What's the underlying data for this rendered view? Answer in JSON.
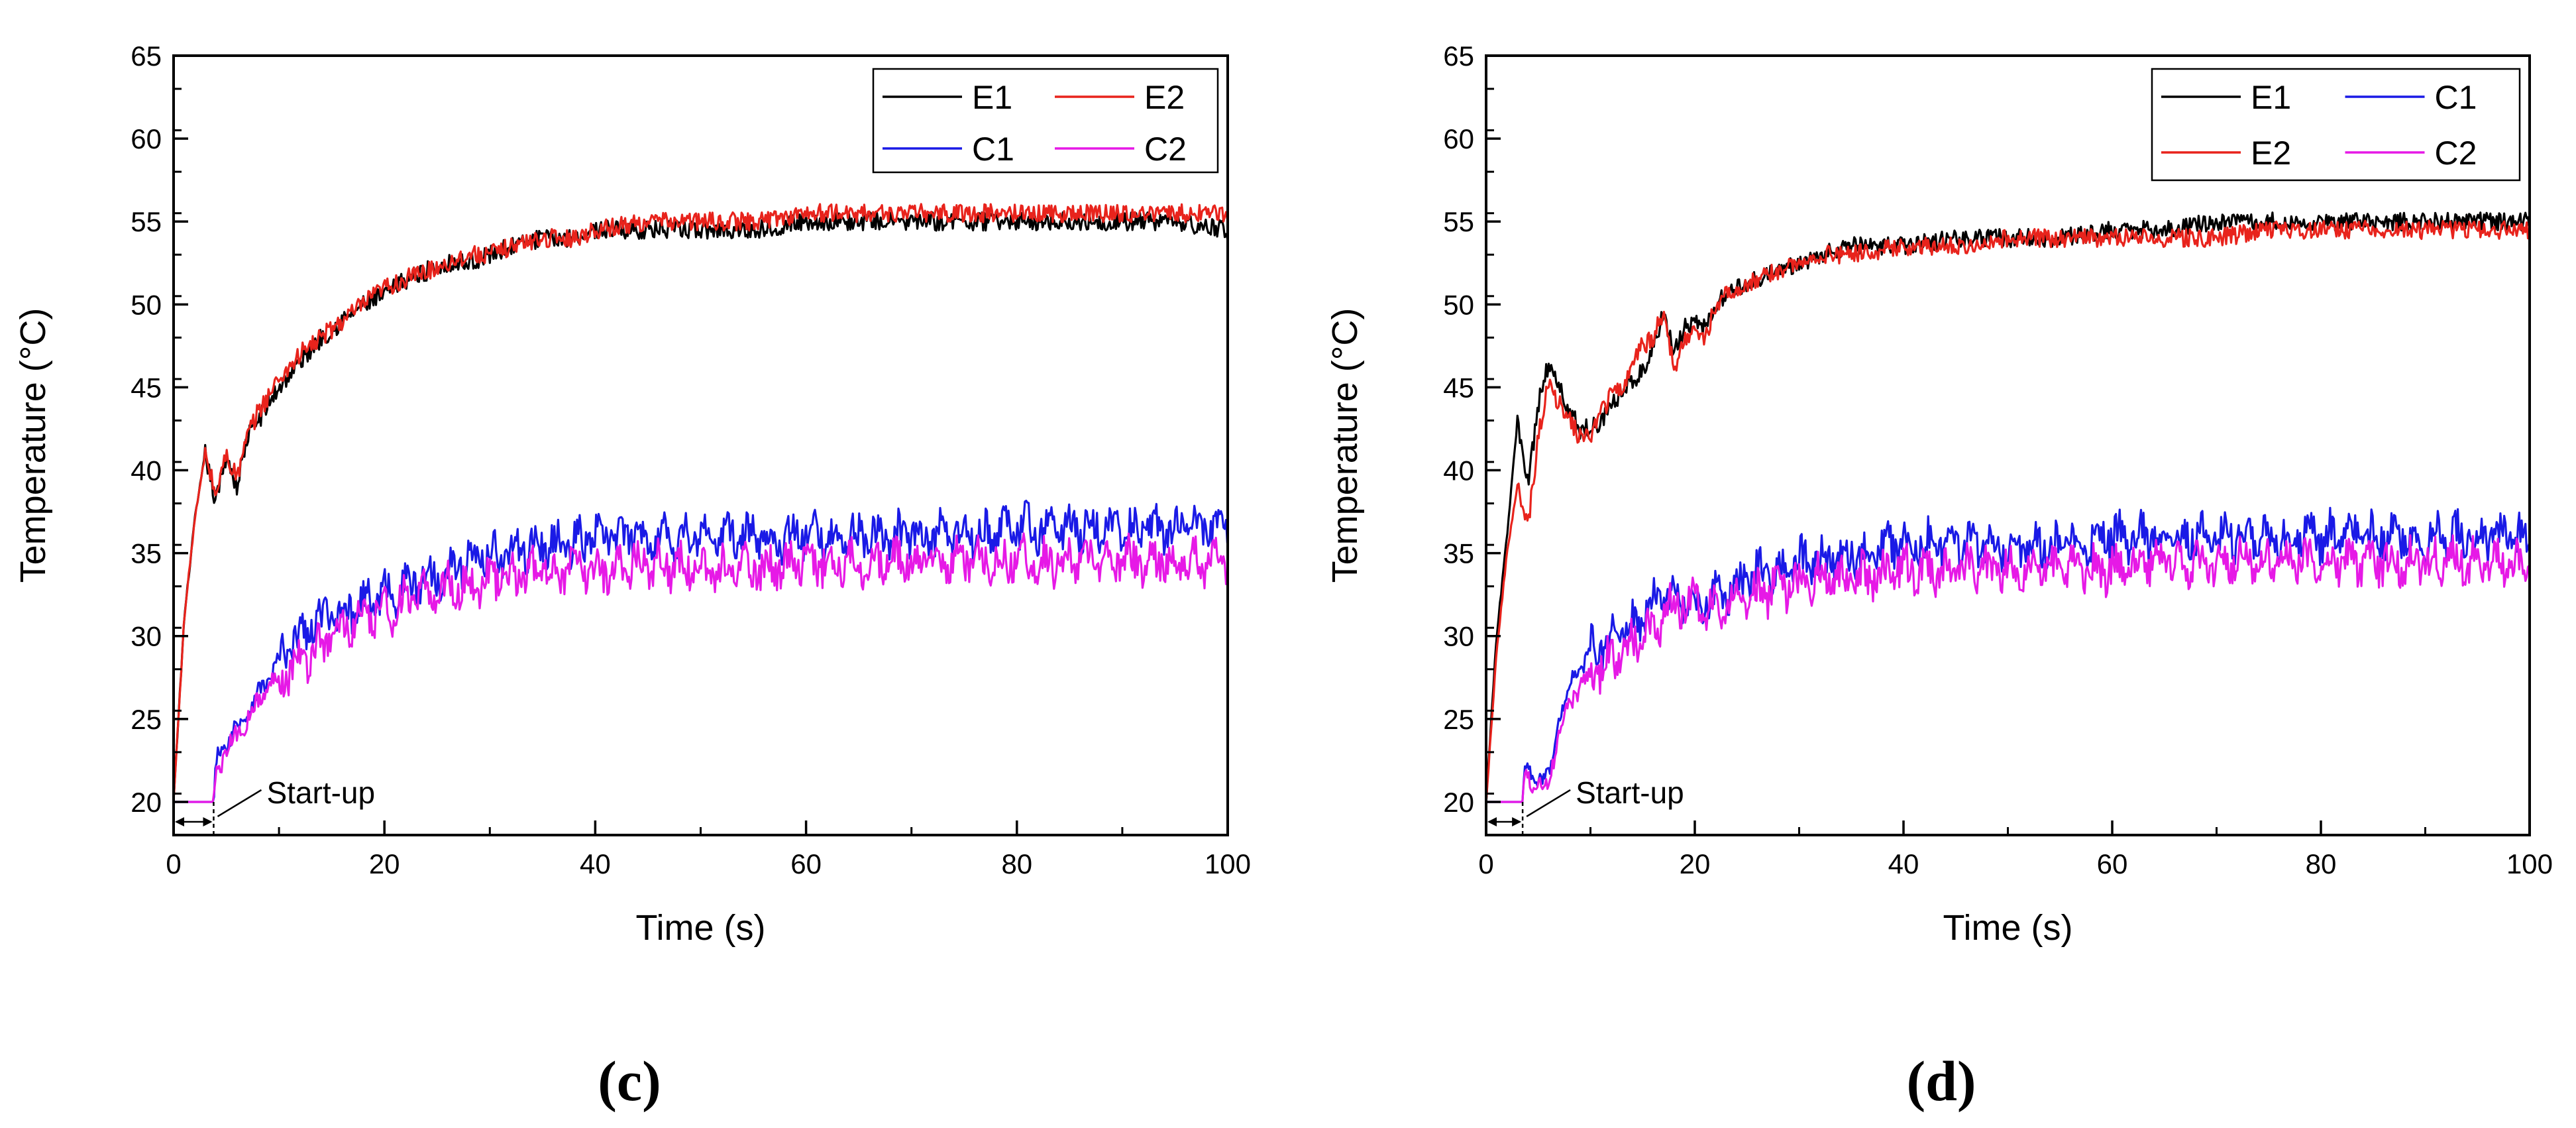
{
  "colors": {
    "E1": "#000000",
    "E2": "#e8231c",
    "C1": "#1a1ae6",
    "C2": "#e619e6"
  },
  "chart_data": [
    {
      "type": "line",
      "panel_label": "c",
      "xlabel": "Time (s)",
      "ylabel": "Temperature (°C)",
      "xlim": [
        0,
        100
      ],
      "ylim": [
        18,
        65
      ],
      "xticks": [
        0,
        20,
        40,
        60,
        80,
        100
      ],
      "yticks": [
        20,
        25,
        30,
        35,
        40,
        45,
        50,
        55,
        60,
        65
      ],
      "legend_order": [
        "E1",
        "E2",
        "C1",
        "C2"
      ],
      "legend_position": "top-right",
      "annotation": {
        "text": "Start-up",
        "x_start": 0,
        "x_end": 3.8,
        "y": 20
      },
      "series": [
        {
          "name": "E1",
          "color_key": "E1",
          "x": [
            0,
            1,
            2,
            3,
            4,
            5,
            6,
            7,
            8,
            9,
            10,
            12,
            14,
            16,
            18,
            20,
            22,
            24,
            26,
            28,
            30,
            32,
            35,
            38,
            40,
            45,
            50,
            55,
            60,
            65,
            70,
            75,
            80,
            85,
            90,
            95,
            100
          ],
          "values": [
            20,
            31,
            37,
            41,
            38,
            41,
            39,
            42,
            43,
            44,
            45,
            46.5,
            48,
            49,
            50,
            50.5,
            51.5,
            52,
            52.5,
            52.5,
            53,
            53.5,
            54,
            54,
            54.5,
            54.5,
            54.5,
            54.5,
            55,
            55,
            55,
            55,
            55,
            55,
            55,
            55,
            54.5
          ]
        },
        {
          "name": "E2",
          "color_key": "E2",
          "x": [
            0,
            1,
            2,
            3,
            4,
            5,
            6,
            7,
            8,
            9,
            10,
            12,
            14,
            16,
            18,
            20,
            22,
            24,
            26,
            28,
            30,
            32,
            35,
            38,
            40,
            45,
            50,
            55,
            60,
            65,
            70,
            75,
            80,
            85,
            90,
            95,
            100
          ],
          "values": [
            20,
            31,
            37,
            41,
            38.5,
            41,
            39.5,
            42,
            43.5,
            44.5,
            45.5,
            47,
            48,
            49,
            50,
            51,
            51.5,
            52,
            52.5,
            53,
            53,
            53.5,
            54,
            54,
            54.5,
            55,
            55,
            55,
            55.5,
            55.5,
            55.5,
            55.5,
            55.5,
            55.5,
            55.5,
            55.5,
            55.5
          ]
        },
        {
          "name": "C1",
          "color_key": "C1",
          "x": [
            0,
            3.8,
            4,
            5,
            6,
            7,
            8,
            9,
            10,
            12,
            14,
            16,
            18,
            20,
            22,
            24,
            26,
            28,
            30,
            32,
            35,
            38,
            40,
            45,
            50,
            55,
            60,
            65,
            70,
            75,
            80,
            85,
            90,
            95,
            100
          ],
          "values": [
            20,
            20,
            22.5,
            23.5,
            24.5,
            25.5,
            26.5,
            27.5,
            28.5,
            30,
            31,
            31.5,
            32,
            32.5,
            33,
            33.5,
            34,
            34.5,
            35,
            35,
            35.5,
            35.5,
            36,
            36,
            36,
            36,
            36,
            36,
            36,
            36,
            36.5,
            36.5,
            36.5,
            36.5,
            36.5
          ]
        },
        {
          "name": "C2",
          "color_key": "C2",
          "x": [
            0,
            3.8,
            4,
            5,
            6,
            7,
            8,
            9,
            10,
            12,
            14,
            16,
            18,
            20,
            22,
            24,
            26,
            28,
            30,
            32,
            35,
            38,
            40,
            45,
            50,
            55,
            60,
            65,
            70,
            75,
            80,
            85,
            90,
            95,
            100
          ],
          "values": [
            20,
            20,
            22,
            23,
            24,
            25,
            26,
            27,
            27.5,
            28.5,
            29.5,
            30.5,
            31,
            31.5,
            32,
            32.5,
            33,
            33,
            33.5,
            33.5,
            34,
            34,
            34,
            34.5,
            34,
            34,
            34.5,
            34.5,
            34.5,
            34.5,
            34.5,
            34.5,
            34.5,
            34.5,
            34.5
          ]
        }
      ]
    },
    {
      "type": "line",
      "panel_label": "d",
      "xlabel": "Time (s)",
      "ylabel": "Temperature (°C)",
      "xlim": [
        0,
        100
      ],
      "ylim": [
        18,
        65
      ],
      "xticks": [
        0,
        20,
        40,
        60,
        80,
        100
      ],
      "yticks": [
        20,
        25,
        30,
        35,
        40,
        45,
        50,
        55,
        60,
        65
      ],
      "legend_order": [
        "E1",
        "C1",
        "E2",
        "C2"
      ],
      "legend_position": "top-right",
      "annotation": {
        "text": "Start-up",
        "x_start": 0,
        "x_end": 3.5,
        "y": 20
      },
      "series": [
        {
          "name": "E1",
          "color_key": "E1",
          "x": [
            0,
            1,
            2,
            3,
            4,
            5,
            6,
            7,
            8,
            9,
            10,
            11,
            12,
            13,
            14,
            15,
            16,
            17,
            18,
            19,
            20,
            21,
            22,
            24,
            26,
            28,
            30,
            32,
            35,
            40,
            45,
            50,
            55,
            60,
            65,
            70,
            75,
            80,
            85,
            90,
            95,
            100
          ],
          "values": [
            20,
            30,
            36,
            43,
            39,
            44,
            46.5,
            45,
            43.5,
            42.5,
            42.5,
            43,
            44,
            44.5,
            45.5,
            46,
            47.5,
            49.5,
            47,
            48.5,
            49,
            48.5,
            50,
            51,
            51.5,
            52,
            52.5,
            53,
            53.5,
            53.5,
            54,
            54,
            54,
            54.5,
            54.5,
            55,
            55,
            55,
            55,
            55,
            55,
            55
          ]
        },
        {
          "name": "E2",
          "color_key": "E2",
          "x": [
            0,
            1,
            2,
            3,
            4,
            5,
            6,
            7,
            8,
            9,
            10,
            11,
            12,
            13,
            14,
            15,
            16,
            17,
            18,
            19,
            20,
            21,
            22,
            24,
            26,
            28,
            30,
            32,
            35,
            40,
            45,
            50,
            55,
            60,
            65,
            70,
            75,
            80,
            85,
            90,
            95,
            100
          ],
          "values": [
            20,
            29,
            35,
            39,
            36.5,
            42,
            45.5,
            44,
            43,
            42,
            42,
            43.5,
            44.5,
            45,
            46.5,
            47.5,
            48,
            49.5,
            46,
            48,
            48.5,
            48,
            50,
            51,
            51.5,
            52,
            52.5,
            53,
            53,
            53.5,
            53.5,
            54,
            54,
            54,
            54,
            54,
            54.5,
            54.5,
            54.5,
            54.5,
            54.5,
            54.5
          ]
        },
        {
          "name": "C1",
          "color_key": "C1",
          "x": [
            0,
            3.5,
            3.7,
            5,
            6,
            7,
            8,
            9,
            10,
            12,
            14,
            16,
            18,
            20,
            22,
            24,
            26,
            28,
            30,
            32,
            35,
            40,
            45,
            50,
            55,
            60,
            65,
            70,
            75,
            80,
            85,
            90,
            95,
            100
          ],
          "values": [
            20,
            20,
            22,
            21.5,
            21.5,
            25,
            27,
            28,
            29,
            30,
            30.5,
            32,
            32.5,
            31.5,
            32.5,
            33,
            34,
            34,
            34.5,
            34.5,
            35,
            35.5,
            35.5,
            35.5,
            35.5,
            36,
            36,
            36,
            36,
            36,
            36,
            36,
            36,
            36
          ]
        },
        {
          "name": "C2",
          "color_key": "C2",
          "x": [
            0,
            3.5,
            3.7,
            5,
            6,
            7,
            8,
            9,
            10,
            12,
            14,
            16,
            18,
            20,
            22,
            24,
            26,
            28,
            30,
            32,
            35,
            40,
            45,
            50,
            55,
            60,
            65,
            70,
            75,
            80,
            85,
            90,
            95,
            100
          ],
          "values": [
            20,
            20,
            21.5,
            21,
            21,
            24.5,
            26,
            27,
            27.5,
            28.5,
            29.5,
            30.5,
            32,
            32,
            31.5,
            32,
            32.5,
            33,
            33,
            33.5,
            33.5,
            34,
            34,
            34,
            34,
            34,
            34.5,
            34.5,
            34.5,
            34.5,
            34.5,
            34.5,
            34.5,
            34.5
          ]
        }
      ]
    }
  ]
}
